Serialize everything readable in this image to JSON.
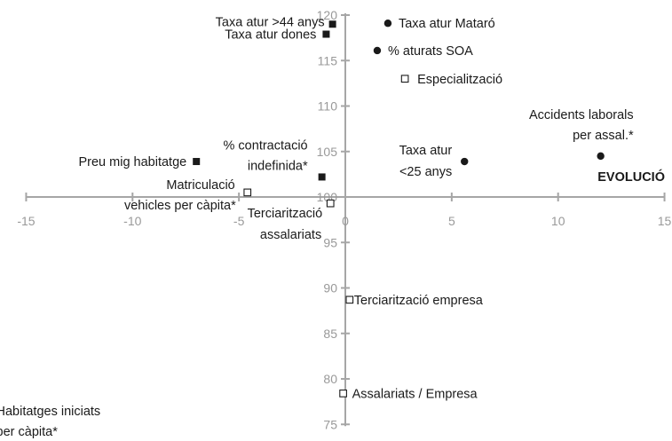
{
  "chart_data": {
    "type": "scatter",
    "title": "",
    "xlabel": "EVOLUCIÓ",
    "ylabel": "",
    "xlim": [
      -15,
      15
    ],
    "ylim": [
      75,
      120
    ],
    "x_ticks": [
      -15,
      -10,
      -5,
      0,
      5,
      10,
      15
    ],
    "y_ticks": [
      75,
      80,
      85,
      90,
      95,
      100,
      105,
      110,
      115,
      120
    ],
    "grid": false,
    "legend": "none",
    "colors": {
      "axis": "#a6a6a6",
      "tick_text": "#999999",
      "marker": "#1a1a1a",
      "hollow_fill": "#ffffff"
    },
    "series": [
      {
        "marker": "circle-filled",
        "points": [
          {
            "label": "Taxa atur Mataró",
            "x": 2.0,
            "y": 119.1
          },
          {
            "label": "% aturats SOA",
            "x": 1.5,
            "y": 116.1
          },
          {
            "label": "Accidents laborals per assal.*",
            "x": 12.0,
            "y": 104.5
          },
          {
            "label": "Taxa atur <25 anys",
            "x": 5.6,
            "y": 103.9
          }
        ]
      },
      {
        "marker": "square-filled",
        "points": [
          {
            "label": "Taxa atur >44 anys",
            "x": -0.6,
            "y": 119.0
          },
          {
            "label": "Taxa atur dones",
            "x": -0.9,
            "y": 117.9
          },
          {
            "label": "Preu mig habitatge",
            "x": -7.0,
            "y": 103.9
          },
          {
            "label": "% contractació indefinida*",
            "x": -1.1,
            "y": 102.2
          }
        ]
      },
      {
        "marker": "square-hollow",
        "points": [
          {
            "label": "Especialització",
            "x": 2.8,
            "y": 113.0
          },
          {
            "label": "Matriculació vehicles per càpita*",
            "x": -4.6,
            "y": 100.5
          },
          {
            "label": "Terciarització assalariats",
            "x": -0.7,
            "y": 99.3
          },
          {
            "label": "Terciarització empresa",
            "x": 0.2,
            "y": 88.7
          },
          {
            "label": "Assalariats / Empresa",
            "x": -0.1,
            "y": 78.4
          },
          {
            "label": "Habitatges iniciats per càpita*",
            "x": -17.0,
            "y": 76.5
          }
        ]
      }
    ]
  }
}
